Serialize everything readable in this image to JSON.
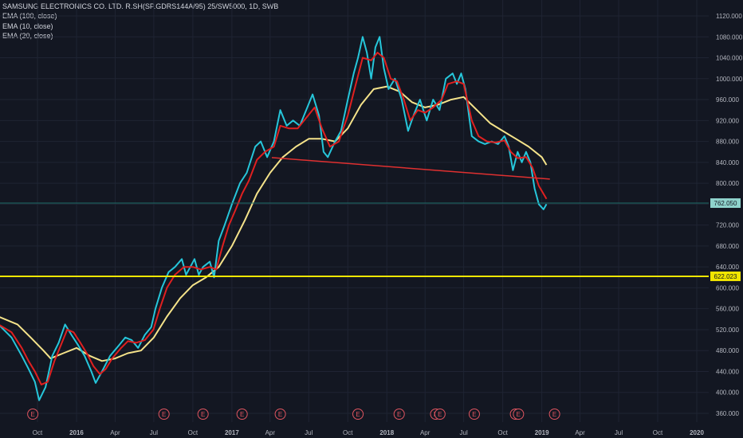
{
  "legend": {
    "title": "SAMSUNG ELECTRONICS CO. LTD. R.SH(SP.GDRS144A/95) 25/SW5000, 1D, SWB",
    "indicators": [
      "EMA (100, close)",
      "EMA (10, close)",
      "EMA (20, close)"
    ]
  },
  "colors": {
    "background": "#131722",
    "grid": "#1f2433",
    "price": "#26c6da",
    "ema10": "#e02020",
    "ema100": "#f5e38a",
    "support_line": "#f2e600",
    "trend_line": "#e03030",
    "earnings": "#e05560",
    "axis_text": "#b2b5be"
  },
  "chart_data": {
    "type": "line",
    "x_ticks": [
      "Oct",
      "2016",
      "Apr",
      "Jul",
      "Oct",
      "2017",
      "Apr",
      "Jul",
      "Oct",
      "2018",
      "Apr",
      "Jul",
      "Oct",
      "2019",
      "Apr",
      "Jul",
      "Oct",
      "2020"
    ],
    "y_ticks": [
      "1120.000",
      "1080.000",
      "1040.000",
      "1000.000",
      "960.000",
      "920.000",
      "880.000",
      "840.000",
      "800.000",
      "760.000",
      "720.000",
      "680.000",
      "640.000",
      "600.000",
      "560.000",
      "520.000",
      "480.000",
      "440.000",
      "400.000",
      "360.000"
    ],
    "ylim": [
      350,
      1130
    ],
    "x_range": [
      "2015-07",
      "2020-02"
    ],
    "series": [
      {
        "key": "price",
        "points": [
          [
            "2015-07-01",
            530
          ],
          [
            "2015-08-01",
            505
          ],
          [
            "2015-08-25",
            470
          ],
          [
            "2015-09-10",
            445
          ],
          [
            "2015-09-25",
            420
          ],
          [
            "2015-10-05",
            385
          ],
          [
            "2015-10-20",
            410
          ],
          [
            "2015-11-05",
            470
          ],
          [
            "2015-11-20",
            495
          ],
          [
            "2015-12-05",
            530
          ],
          [
            "2015-12-20",
            510
          ],
          [
            "2016-01-05",
            490
          ],
          [
            "2016-01-20",
            470
          ],
          [
            "2016-02-05",
            440
          ],
          [
            "2016-02-15",
            418
          ],
          [
            "2016-03-01",
            440
          ],
          [
            "2016-03-20",
            470
          ],
          [
            "2016-04-10",
            490
          ],
          [
            "2016-04-25",
            505
          ],
          [
            "2016-05-10",
            500
          ],
          [
            "2016-05-25",
            485
          ],
          [
            "2016-06-10",
            510
          ],
          [
            "2016-06-25",
            525
          ],
          [
            "2016-07-05",
            560
          ],
          [
            "2016-07-20",
            600
          ],
          [
            "2016-08-05",
            630
          ],
          [
            "2016-08-20",
            640
          ],
          [
            "2016-09-05",
            655
          ],
          [
            "2016-09-15",
            625
          ],
          [
            "2016-09-25",
            640
          ],
          [
            "2016-10-05",
            655
          ],
          [
            "2016-10-15",
            625
          ],
          [
            "2016-10-25",
            640
          ],
          [
            "2016-11-10",
            650
          ],
          [
            "2016-11-20",
            620
          ],
          [
            "2016-12-01",
            690
          ],
          [
            "2016-12-15",
            720
          ],
          [
            "2017-01-01",
            760
          ],
          [
            "2017-01-20",
            800
          ],
          [
            "2017-02-05",
            820
          ],
          [
            "2017-02-25",
            870
          ],
          [
            "2017-03-10",
            880
          ],
          [
            "2017-03-25",
            850
          ],
          [
            "2017-04-10",
            880
          ],
          [
            "2017-04-25",
            940
          ],
          [
            "2017-05-10",
            910
          ],
          [
            "2017-05-25",
            920
          ],
          [
            "2017-06-10",
            910
          ],
          [
            "2017-06-25",
            940
          ],
          [
            "2017-07-10",
            970
          ],
          [
            "2017-07-25",
            930
          ],
          [
            "2017-08-05",
            860
          ],
          [
            "2017-08-15",
            850
          ],
          [
            "2017-09-01",
            880
          ],
          [
            "2017-09-15",
            900
          ],
          [
            "2017-10-01",
            960
          ],
          [
            "2017-10-15",
            1010
          ],
          [
            "2017-10-25",
            1040
          ],
          [
            "2017-11-05",
            1080
          ],
          [
            "2017-11-15",
            1050
          ],
          [
            "2017-11-25",
            1000
          ],
          [
            "2017-12-05",
            1060
          ],
          [
            "2017-12-15",
            1080
          ],
          [
            "2017-12-25",
            1020
          ],
          [
            "2018-01-05",
            980
          ],
          [
            "2018-01-20",
            1000
          ],
          [
            "2018-02-05",
            960
          ],
          [
            "2018-02-20",
            900
          ],
          [
            "2018-03-05",
            930
          ],
          [
            "2018-03-20",
            960
          ],
          [
            "2018-04-05",
            920
          ],
          [
            "2018-04-20",
            960
          ],
          [
            "2018-05-05",
            940
          ],
          [
            "2018-05-20",
            1000
          ],
          [
            "2018-06-05",
            1010
          ],
          [
            "2018-06-15",
            990
          ],
          [
            "2018-06-25",
            1010
          ],
          [
            "2018-07-05",
            980
          ],
          [
            "2018-07-20",
            890
          ],
          [
            "2018-08-05",
            880
          ],
          [
            "2018-08-20",
            875
          ],
          [
            "2018-09-05",
            880
          ],
          [
            "2018-09-20",
            875
          ],
          [
            "2018-10-05",
            890
          ],
          [
            "2018-10-15",
            870
          ],
          [
            "2018-10-25",
            825
          ],
          [
            "2018-11-05",
            860
          ],
          [
            "2018-11-15",
            840
          ],
          [
            "2018-11-25",
            860
          ],
          [
            "2018-12-05",
            840
          ],
          [
            "2018-12-15",
            790
          ],
          [
            "2018-12-25",
            760
          ],
          [
            "2019-01-05",
            750
          ],
          [
            "2019-01-12",
            760
          ]
        ]
      },
      {
        "key": "ema10",
        "points": [
          [
            "2015-07-01",
            530
          ],
          [
            "2015-08-01",
            515
          ],
          [
            "2015-08-25",
            485
          ],
          [
            "2015-09-10",
            460
          ],
          [
            "2015-09-25",
            440
          ],
          [
            "2015-10-10",
            415
          ],
          [
            "2015-10-25",
            420
          ],
          [
            "2015-11-10",
            460
          ],
          [
            "2015-11-25",
            490
          ],
          [
            "2015-12-10",
            520
          ],
          [
            "2015-12-25",
            515
          ],
          [
            "2016-01-10",
            495
          ],
          [
            "2016-01-25",
            475
          ],
          [
            "2016-02-10",
            450
          ],
          [
            "2016-02-25",
            435
          ],
          [
            "2016-03-10",
            445
          ],
          [
            "2016-03-25",
            465
          ],
          [
            "2016-04-15",
            485
          ],
          [
            "2016-05-01",
            498
          ],
          [
            "2016-05-20",
            495
          ],
          [
            "2016-06-10",
            500
          ],
          [
            "2016-06-30",
            520
          ],
          [
            "2016-07-15",
            560
          ],
          [
            "2016-08-01",
            600
          ],
          [
            "2016-08-20",
            625
          ],
          [
            "2016-09-10",
            640
          ],
          [
            "2016-10-01",
            640
          ],
          [
            "2016-10-20",
            635
          ],
          [
            "2016-11-10",
            640
          ],
          [
            "2016-11-25",
            635
          ],
          [
            "2016-12-10",
            680
          ],
          [
            "2016-12-25",
            720
          ],
          [
            "2017-01-10",
            750
          ],
          [
            "2017-01-25",
            780
          ],
          [
            "2017-02-10",
            805
          ],
          [
            "2017-03-01",
            845
          ],
          [
            "2017-03-20",
            860
          ],
          [
            "2017-04-10",
            870
          ],
          [
            "2017-04-25",
            910
          ],
          [
            "2017-05-15",
            905
          ],
          [
            "2017-06-05",
            905
          ],
          [
            "2017-06-25",
            925
          ],
          [
            "2017-07-15",
            945
          ],
          [
            "2017-08-01",
            905
          ],
          [
            "2017-08-20",
            870
          ],
          [
            "2017-09-10",
            880
          ],
          [
            "2017-10-01",
            930
          ],
          [
            "2017-10-20",
            990
          ],
          [
            "2017-11-05",
            1040
          ],
          [
            "2017-11-25",
            1035
          ],
          [
            "2017-12-10",
            1050
          ],
          [
            "2017-12-25",
            1040
          ],
          [
            "2018-01-10",
            1000
          ],
          [
            "2018-01-25",
            995
          ],
          [
            "2018-02-10",
            960
          ],
          [
            "2018-02-25",
            920
          ],
          [
            "2018-03-15",
            940
          ],
          [
            "2018-04-01",
            935
          ],
          [
            "2018-04-20",
            945
          ],
          [
            "2018-05-10",
            960
          ],
          [
            "2018-05-25",
            990
          ],
          [
            "2018-06-15",
            995
          ],
          [
            "2018-07-01",
            990
          ],
          [
            "2018-07-20",
            920
          ],
          [
            "2018-08-05",
            890
          ],
          [
            "2018-08-25",
            880
          ],
          [
            "2018-09-15",
            878
          ],
          [
            "2018-10-05",
            882
          ],
          [
            "2018-10-20",
            860
          ],
          [
            "2018-11-05",
            848
          ],
          [
            "2018-11-25",
            850
          ],
          [
            "2018-12-10",
            830
          ],
          [
            "2018-12-25",
            795
          ],
          [
            "2019-01-12",
            770
          ]
        ]
      },
      {
        "key": "ema100",
        "points": [
          [
            "2015-07-01",
            545
          ],
          [
            "2015-08-15",
            530
          ],
          [
            "2015-09-15",
            505
          ],
          [
            "2015-10-15",
            480
          ],
          [
            "2015-11-01",
            465
          ],
          [
            "2015-12-01",
            475
          ],
          [
            "2016-01-01",
            485
          ],
          [
            "2016-02-01",
            470
          ],
          [
            "2016-03-01",
            460
          ],
          [
            "2016-04-01",
            465
          ],
          [
            "2016-05-01",
            475
          ],
          [
            "2016-06-01",
            480
          ],
          [
            "2016-07-01",
            505
          ],
          [
            "2016-08-01",
            545
          ],
          [
            "2016-09-01",
            580
          ],
          [
            "2016-10-01",
            605
          ],
          [
            "2016-11-01",
            620
          ],
          [
            "2016-12-01",
            640
          ],
          [
            "2017-01-01",
            680
          ],
          [
            "2017-02-01",
            730
          ],
          [
            "2017-03-01",
            780
          ],
          [
            "2017-04-01",
            820
          ],
          [
            "2017-05-01",
            850
          ],
          [
            "2017-06-01",
            870
          ],
          [
            "2017-07-01",
            885
          ],
          [
            "2017-08-01",
            885
          ],
          [
            "2017-09-01",
            880
          ],
          [
            "2017-10-01",
            905
          ],
          [
            "2017-11-01",
            950
          ],
          [
            "2017-12-01",
            980
          ],
          [
            "2018-01-01",
            985
          ],
          [
            "2018-02-01",
            975
          ],
          [
            "2018-03-01",
            955
          ],
          [
            "2018-04-01",
            945
          ],
          [
            "2018-05-01",
            950
          ],
          [
            "2018-06-01",
            960
          ],
          [
            "2018-07-01",
            965
          ],
          [
            "2018-08-01",
            940
          ],
          [
            "2018-09-01",
            915
          ],
          [
            "2018-10-01",
            900
          ],
          [
            "2018-11-01",
            885
          ],
          [
            "2018-12-01",
            870
          ],
          [
            "2019-01-01",
            850
          ],
          [
            "2019-01-12",
            835
          ]
        ]
      }
    ],
    "trend_line": [
      [
        "2017-04-05",
        849
      ],
      [
        "2019-01-20",
        808
      ]
    ],
    "support_level": 622.023,
    "last_price": 762.05,
    "price_tags": {
      "last": "762.050",
      "support": "622.023"
    },
    "earnings": [
      {
        "date": "2015-09-20",
        "label": "E"
      },
      {
        "date": "2016-07-25",
        "label": "E"
      },
      {
        "date": "2016-10-25",
        "label": "E"
      },
      {
        "date": "2017-01-25",
        "label": "E"
      },
      {
        "date": "2017-04-25",
        "label": "E"
      },
      {
        "date": "2017-10-25",
        "label": "E"
      },
      {
        "date": "2018-01-30",
        "label": "E"
      },
      {
        "date": "2018-04-26",
        "label": "E"
      },
      {
        "date": "2018-05-06",
        "label": "E"
      },
      {
        "date": "2018-07-26",
        "label": "E"
      },
      {
        "date": "2018-10-31",
        "label": "E"
      },
      {
        "date": "2018-11-07",
        "label": "E"
      },
      {
        "date": "2019-01-31",
        "label": "E"
      }
    ]
  }
}
